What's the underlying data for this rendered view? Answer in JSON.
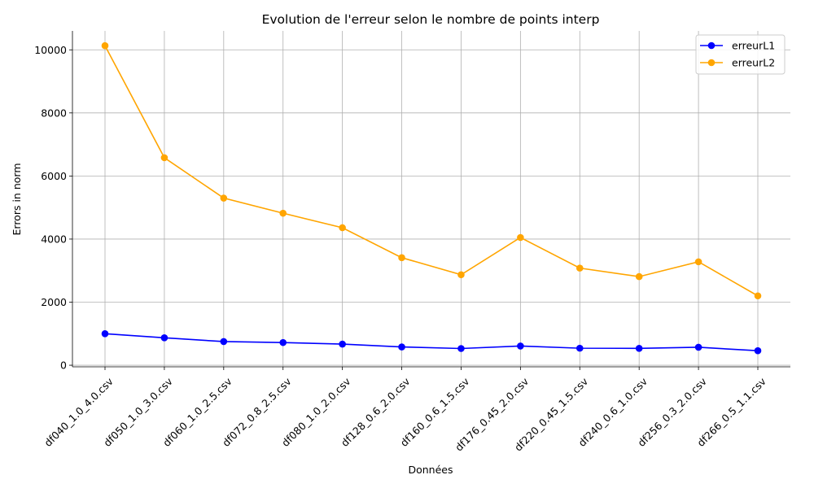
{
  "chart_data": {
    "type": "line",
    "title": "Evolution de l'erreur selon le nombre de points interp",
    "xlabel": "Données",
    "ylabel": "Errors in norm",
    "categories": [
      "df040_1.0_4.0.csv",
      "df050_1.0_3.0.csv",
      "df060_1.0_2.5.csv",
      "df072_0.8_2.5.csv",
      "df080_1.0_2.0.csv",
      "df128_0.6_2.0.csv",
      "df160_0.6_1.5.csv",
      "df176_0.45_2.0.csv",
      "df220_0.45_1.5.csv",
      "df240_0.6_1.0.csv",
      "df256_0.3_2.0.csv",
      "df266_0.5_1.1.csv"
    ],
    "series": [
      {
        "name": "erreurL1",
        "color": "#0000ff",
        "marker": "circle",
        "values": [
          1000,
          870,
          750,
          720,
          670,
          580,
          530,
          610,
          540,
          535,
          570,
          460
        ]
      },
      {
        "name": "erreurL2",
        "color": "#ffa500",
        "marker": "circle",
        "values": [
          10130,
          6580,
          5300,
          4820,
          4360,
          3410,
          2870,
          4050,
          3080,
          2810,
          3280,
          2200
        ]
      }
    ],
    "ylim": [
      -50,
      10600
    ],
    "yticks": [
      0,
      2000,
      4000,
      6000,
      8000,
      10000
    ],
    "grid": true,
    "legend_position": "top-right"
  }
}
